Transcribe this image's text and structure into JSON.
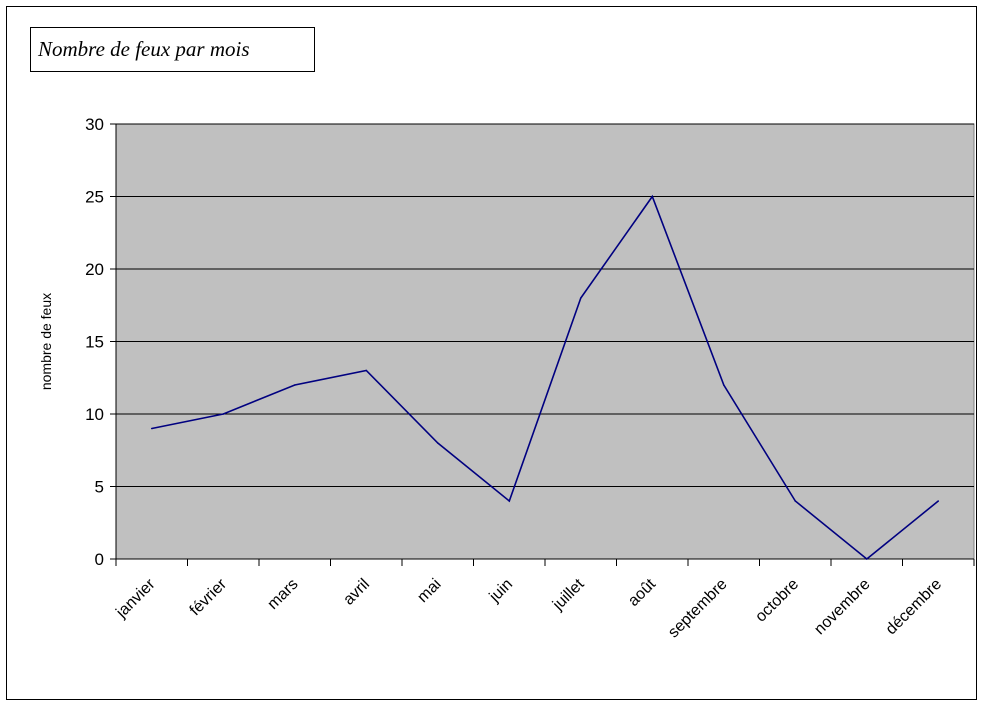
{
  "chart_data": {
    "type": "line",
    "title": "Nombre de feux par mois",
    "xlabel": "",
    "ylabel": "nombre de feux",
    "ylim": [
      0,
      30
    ],
    "yticks": [
      0,
      5,
      10,
      15,
      20,
      25,
      30
    ],
    "grid": true,
    "legend": "none",
    "categories": [
      "janvier",
      "février",
      "mars",
      "avril",
      "mai",
      "juin",
      "juillet",
      "août",
      "septembre",
      "octobre",
      "novembre",
      "décembre"
    ],
    "series": [
      {
        "values": [
          9,
          10,
          12,
          13,
          8,
          4,
          18,
          25,
          12,
          4,
          0,
          4
        ]
      }
    ],
    "colors": {
      "plot_background": "#c0c0c0",
      "line": "#000080",
      "gridline": "#000000"
    }
  }
}
